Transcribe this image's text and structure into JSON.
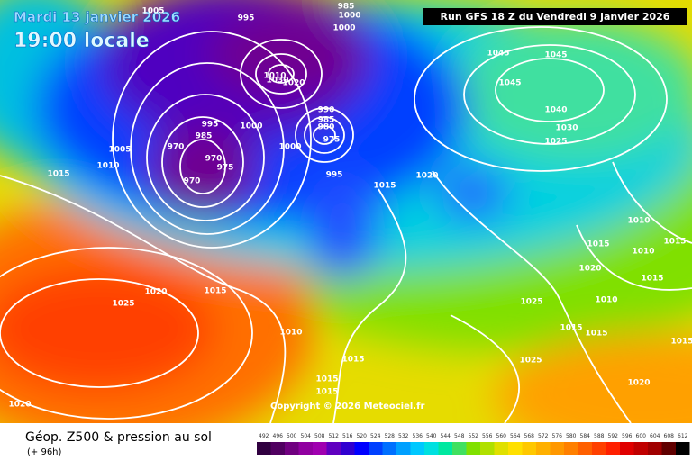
{
  "header": {
    "date": "Mardi 13 janvier 2026",
    "time": "19:00 locale",
    "run": "Run GFS 18 Z du Vendredi 9 janvier 2026",
    "copyright": "Copyright © 2026 Meteociel.fr"
  },
  "footer": {
    "title": "Géop. Z500 & pression au sol",
    "lead": "(+ 96h)"
  },
  "isobar_labels": [
    "1005",
    "995",
    "985",
    "1000",
    "1000",
    "1045",
    "1045",
    "1045",
    "1040",
    "1030",
    "1025",
    "1010",
    "1030",
    "1020",
    "990",
    "985",
    "980",
    "975",
    "995",
    "985",
    "1000",
    "1000",
    "970",
    "970",
    "975",
    "970",
    "1005",
    "1010",
    "1015",
    "995",
    "1015",
    "1020",
    "1010",
    "1015",
    "1015",
    "1010",
    "1020",
    "1015",
    "1025",
    "1010",
    "1020",
    "1015",
    "1025",
    "1010",
    "1015",
    "1015",
    "1015",
    "1025",
    "1015",
    "1015",
    "1020",
    "1020",
    "1015"
  ],
  "legend": {
    "levels": [
      492,
      496,
      500,
      504,
      508,
      512,
      516,
      520,
      524,
      528,
      532,
      536,
      540,
      544,
      548,
      552,
      556,
      560,
      564,
      568,
      572,
      576,
      580,
      584,
      588,
      592,
      596,
      600,
      604,
      608,
      612
    ],
    "colors": [
      "#300040",
      "#500060",
      "#700080",
      "#9000a0",
      "#a000b0",
      "#6000c0",
      "#3000d0",
      "#0000ff",
      "#0040ff",
      "#0070ff",
      "#00a0ff",
      "#00c8ff",
      "#00e0e0",
      "#00e8a0",
      "#40e060",
      "#80e000",
      "#b0e000",
      "#e0e000",
      "#ffe000",
      "#ffc800",
      "#ffb000",
      "#ff9800",
      "#ff8000",
      "#ff6000",
      "#ff4000",
      "#ff2000",
      "#e00000",
      "#c00000",
      "#a00000",
      "#600000",
      "#000000"
    ]
  }
}
